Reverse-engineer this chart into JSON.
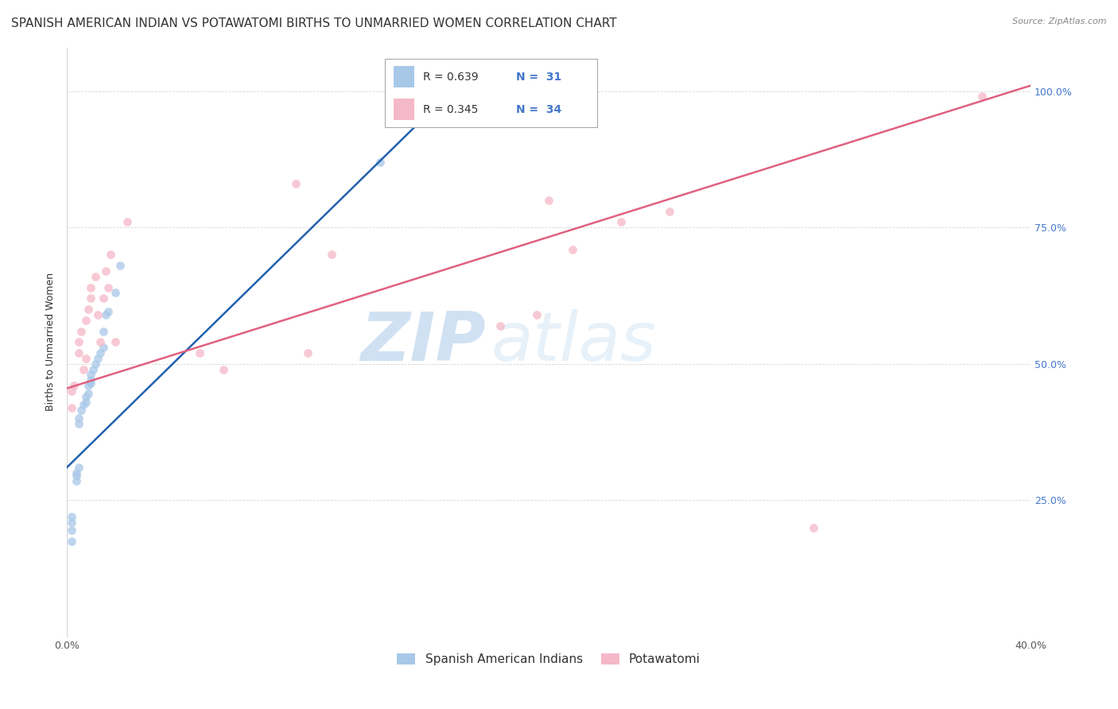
{
  "title": "SPANISH AMERICAN INDIAN VS POTAWATOMI BIRTHS TO UNMARRIED WOMEN CORRELATION CHART",
  "source": "Source: ZipAtlas.com",
  "ylabel": "Births to Unmarried Women",
  "xlim": [
    0.0,
    0.4
  ],
  "ylim": [
    0.0,
    1.08
  ],
  "xticks": [
    0.0,
    0.05,
    0.1,
    0.15,
    0.2,
    0.25,
    0.3,
    0.35,
    0.4
  ],
  "yticks": [
    0.0,
    0.25,
    0.5,
    0.75,
    1.0
  ],
  "blue_color": "#a8c8e8",
  "pink_color": "#f5b8c8",
  "blue_line_color": "#2060b0",
  "pink_line_color": "#e06080",
  "scatter_alpha": 0.75,
  "marker_size": 60,
  "blue_scatter_x": [
    0.002,
    0.002,
    0.002,
    0.002,
    0.004,
    0.004,
    0.004,
    0.005,
    0.005,
    0.005,
    0.006,
    0.007,
    0.008,
    0.008,
    0.009,
    0.009,
    0.01,
    0.01,
    0.01,
    0.011,
    0.012,
    0.013,
    0.014,
    0.015,
    0.015,
    0.016,
    0.017,
    0.02,
    0.022,
    0.13,
    0.155
  ],
  "blue_scatter_y": [
    0.175,
    0.195,
    0.21,
    0.22,
    0.285,
    0.295,
    0.3,
    0.31,
    0.39,
    0.4,
    0.415,
    0.425,
    0.43,
    0.44,
    0.445,
    0.46,
    0.465,
    0.47,
    0.48,
    0.49,
    0.5,
    0.51,
    0.52,
    0.53,
    0.56,
    0.59,
    0.595,
    0.63,
    0.68,
    0.87,
    0.96
  ],
  "pink_scatter_x": [
    0.002,
    0.002,
    0.003,
    0.005,
    0.005,
    0.006,
    0.007,
    0.008,
    0.008,
    0.009,
    0.01,
    0.01,
    0.012,
    0.013,
    0.014,
    0.015,
    0.016,
    0.017,
    0.018,
    0.02,
    0.025,
    0.055,
    0.065,
    0.095,
    0.1,
    0.11,
    0.18,
    0.195,
    0.2,
    0.21,
    0.23,
    0.25,
    0.31,
    0.38
  ],
  "pink_scatter_y": [
    0.42,
    0.45,
    0.46,
    0.52,
    0.54,
    0.56,
    0.49,
    0.51,
    0.58,
    0.6,
    0.62,
    0.64,
    0.66,
    0.59,
    0.54,
    0.62,
    0.67,
    0.64,
    0.7,
    0.54,
    0.76,
    0.52,
    0.49,
    0.83,
    0.52,
    0.7,
    0.57,
    0.59,
    0.8,
    0.71,
    0.76,
    0.78,
    0.2,
    0.99
  ],
  "blue_line_x": [
    0.0,
    0.155
  ],
  "blue_line_y": [
    0.31,
    0.98
  ],
  "pink_line_x": [
    0.0,
    0.4
  ],
  "pink_line_y": [
    0.455,
    1.01
  ],
  "watermark_zip": "ZIP",
  "watermark_atlas": "atlas",
  "title_fontsize": 11,
  "label_fontsize": 9,
  "tick_fontsize": 9
}
